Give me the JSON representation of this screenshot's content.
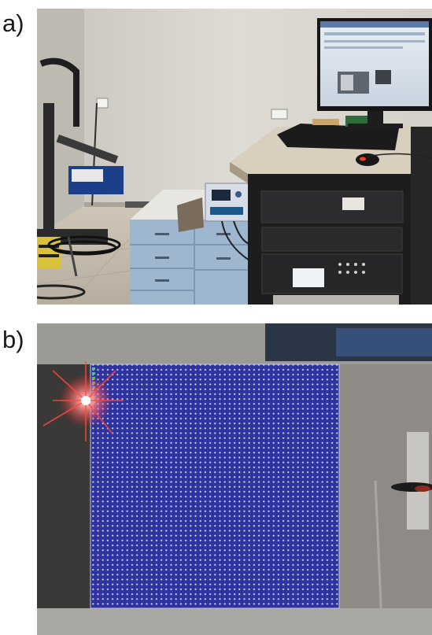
{
  "figure": {
    "panels": [
      {
        "label": "a)"
      },
      {
        "label": "b)"
      }
    ]
  },
  "colors": {
    "wall": "#d9d6cf",
    "floor": "#c9c1b3",
    "scan_grid": "#2e2f9e",
    "grid_points": "#dfe3f5",
    "laser": "#ff3030",
    "concrete": "#8c8a86"
  }
}
